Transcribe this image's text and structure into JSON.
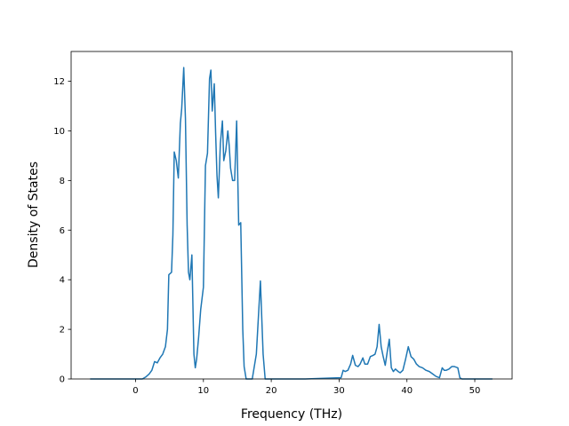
{
  "chart_data": {
    "type": "line",
    "title": "",
    "xlabel": "Frequency (THz)",
    "ylabel": "Density of States",
    "xlim": [
      -9.5,
      55.5
    ],
    "ylim": [
      0,
      13.2
    ],
    "xticks": [
      0,
      10,
      20,
      30,
      40,
      50
    ],
    "yticks": [
      0,
      2,
      4,
      6,
      8,
      10,
      12
    ],
    "xtick_labels": [
      "0",
      "10",
      "20",
      "30",
      "40",
      "50"
    ],
    "ytick_labels": [
      "0",
      "2",
      "4",
      "6",
      "8",
      "10",
      "12"
    ],
    "grid": false,
    "legend": "none",
    "series": [
      {
        "color": "#1f77b4",
        "x": [
          -6.7,
          1.0,
          1.5,
          2.0,
          2.4,
          2.8,
          3.2,
          3.6,
          4.0,
          4.4,
          4.7,
          4.9,
          5.1,
          5.3,
          5.5,
          5.7,
          6.0,
          6.3,
          6.6,
          6.8,
          7.1,
          7.35,
          7.6,
          7.8,
          8.0,
          8.3,
          8.6,
          8.8,
          9.0,
          9.3,
          9.6,
          10.0,
          10.3,
          10.6,
          10.9,
          11.1,
          11.3,
          11.6,
          11.8,
          12.0,
          12.2,
          12.5,
          12.8,
          13.0,
          13.3,
          13.6,
          13.8,
          14.0,
          14.3,
          14.6,
          14.9,
          15.2,
          15.5,
          15.8,
          16.0,
          16.3,
          16.5,
          16.8,
          17.2,
          17.8,
          18.4,
          18.8,
          19.1,
          19.4,
          19.8,
          20.5,
          25.0,
          30.3,
          30.6,
          30.9,
          31.3,
          31.7,
          32.0,
          32.4,
          32.8,
          33.1,
          33.5,
          33.8,
          34.2,
          34.6,
          35.0,
          35.3,
          35.6,
          35.9,
          36.2,
          36.5,
          36.8,
          37.1,
          37.4,
          37.7,
          38.0,
          38.3,
          38.7,
          39.0,
          39.4,
          39.8,
          40.2,
          40.6,
          41.0,
          41.4,
          41.8,
          42.3,
          42.8,
          43.3,
          43.8,
          44.3,
          44.8,
          45.2,
          45.5,
          45.8,
          46.2,
          46.6,
          47.0,
          47.5,
          47.8,
          48.1,
          48.5,
          52.6
        ],
        "y": [
          0,
          0,
          0.08,
          0.2,
          0.35,
          0.7,
          0.65,
          0.85,
          1.0,
          1.3,
          2.0,
          4.2,
          4.25,
          4.3,
          5.8,
          9.15,
          8.8,
          8.1,
          10.3,
          10.9,
          12.55,
          10.5,
          6.2,
          4.3,
          4.0,
          5.0,
          1.0,
          0.45,
          0.8,
          1.7,
          2.8,
          3.7,
          8.6,
          9.1,
          12.1,
          12.45,
          10.8,
          11.9,
          9.9,
          8.2,
          7.3,
          9.5,
          10.4,
          8.8,
          9.2,
          10.0,
          9.4,
          8.5,
          8.0,
          8.0,
          10.4,
          6.2,
          6.3,
          2.0,
          0.5,
          0,
          0,
          0,
          0,
          1.0,
          3.95,
          1.0,
          0,
          0,
          0,
          0,
          0,
          0.05,
          0.35,
          0.3,
          0.35,
          0.6,
          0.95,
          0.55,
          0.5,
          0.6,
          0.85,
          0.6,
          0.6,
          0.9,
          0.95,
          1.0,
          1.3,
          2.2,
          1.3,
          0.9,
          0.55,
          1.1,
          1.6,
          0.45,
          0.3,
          0.4,
          0.3,
          0.25,
          0.35,
          0.8,
          1.3,
          0.9,
          0.8,
          0.6,
          0.5,
          0.45,
          0.35,
          0.3,
          0.2,
          0.1,
          0.05,
          0.45,
          0.35,
          0.35,
          0.4,
          0.5,
          0.5,
          0.45,
          0.05,
          0,
          0,
          0
        ]
      }
    ]
  }
}
